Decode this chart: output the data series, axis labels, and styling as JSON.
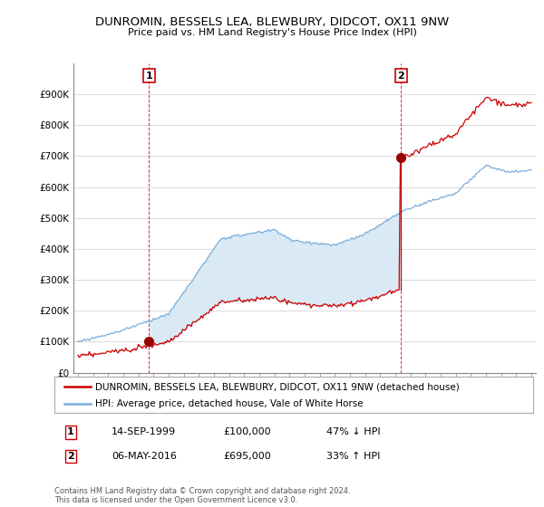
{
  "title": "DUNROMIN, BESSELS LEA, BLEWBURY, DIDCOT, OX11 9NW",
  "subtitle": "Price paid vs. HM Land Registry's House Price Index (HPI)",
  "hpi_label": "HPI: Average price, detached house, Vale of White Horse",
  "property_label": "DUNROMIN, BESSELS LEA, BLEWBURY, DIDCOT, OX11 9NW (detached house)",
  "sale1_date": "14-SEP-1999",
  "sale1_price": 100000,
  "sale1_text": "47% ↓ HPI",
  "sale2_date": "06-MAY-2016",
  "sale2_price": 695000,
  "sale2_text": "33% ↑ HPI",
  "copyright_text": "Contains HM Land Registry data © Crown copyright and database right 2024.\nThis data is licensed under the Open Government Licence v3.0.",
  "hpi_color": "#7aaddc",
  "property_color": "#cc0000",
  "vline_color": "#cc0000",
  "fill_color": "#daeaf5",
  "background_color": "#ffffff",
  "grid_color": "#cccccc",
  "ylim_max": 1000000,
  "xlim_start": 1994.7,
  "xlim_end": 2025.3,
  "t1": 1999.708,
  "t2": 2016.375,
  "sale1_price_val": 100000,
  "sale2_price_val": 695000,
  "hpi_at_t1": 188679,
  "hpi_at_t2": 522556
}
